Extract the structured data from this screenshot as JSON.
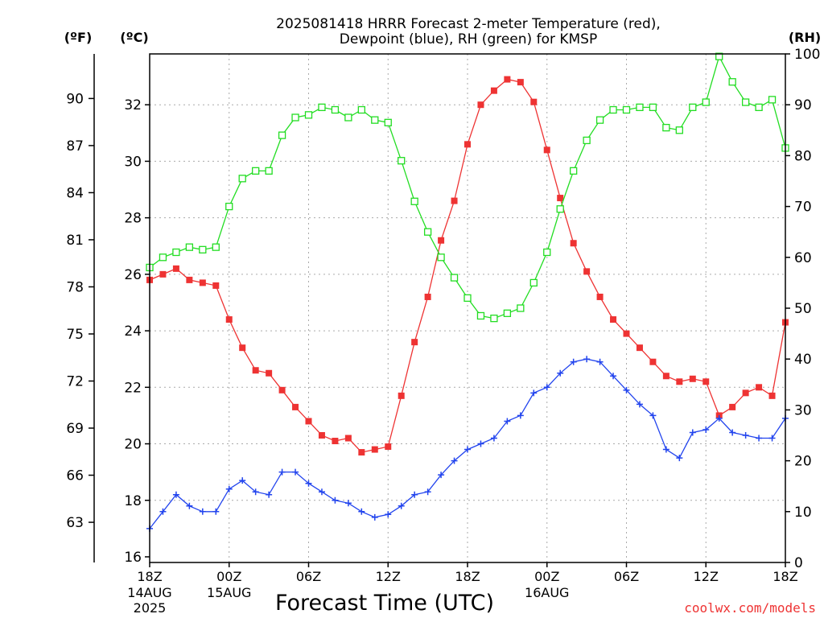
{
  "chart_data": {
    "type": "line",
    "title": "2025081418 HRRR Forecast 2-meter Temperature (red),",
    "subtitle": "Dewpoint (blue), RH (green) for KMSP",
    "xlabel": "Forecast Time (UTC)",
    "units": {
      "fahrenheit": "(ºF)",
      "celsius": "(ºC)",
      "rh": "(RH)"
    },
    "credit": "coolwx.com/models",
    "x_ticks": [
      {
        "hour": 0,
        "label": "18Z",
        "sub": [
          "14AUG",
          "2025"
        ]
      },
      {
        "hour": 6,
        "label": "00Z",
        "sub": [
          "15AUG"
        ]
      },
      {
        "hour": 12,
        "label": "06Z",
        "sub": []
      },
      {
        "hour": 18,
        "label": "12Z",
        "sub": []
      },
      {
        "hour": 24,
        "label": "18Z",
        "sub": []
      },
      {
        "hour": 30,
        "label": "00Z",
        "sub": [
          "16AUG"
        ]
      },
      {
        "hour": 36,
        "label": "06Z",
        "sub": []
      },
      {
        "hour": 42,
        "label": "12Z",
        "sub": []
      },
      {
        "hour": 48,
        "label": "18Z",
        "sub": []
      }
    ],
    "xlim": [
      0,
      48
    ],
    "ylim_celsius": [
      15.8,
      33.8
    ],
    "ylim_rh": [
      0,
      100
    ],
    "celsius_ticks": [
      16,
      18,
      20,
      22,
      24,
      26,
      28,
      30,
      32
    ],
    "fahrenheit_ticks": [
      63,
      66,
      69,
      72,
      75,
      78,
      81,
      84,
      87,
      90
    ],
    "rh_ticks": [
      0,
      10,
      20,
      30,
      40,
      50,
      60,
      70,
      80,
      90,
      100
    ],
    "grid": true,
    "colors": {
      "temperature": "#ee3333",
      "dewpoint": "#2244ee",
      "rh": "#22dd22"
    },
    "series": [
      {
        "key": "temperature",
        "unit": "celsius",
        "marker": "filled-square",
        "values": [
          25.8,
          26.0,
          26.2,
          25.8,
          25.7,
          25.6,
          24.4,
          23.4,
          22.6,
          22.5,
          21.9,
          21.3,
          20.8,
          20.3,
          20.1,
          20.2,
          19.7,
          19.8,
          19.9,
          21.7,
          23.6,
          25.2,
          27.2,
          28.6,
          30.6,
          32.0,
          32.5,
          32.9,
          32.8,
          32.1,
          30.4,
          28.7,
          27.1,
          26.1,
          25.2,
          24.4,
          23.9,
          23.4,
          22.9,
          22.4,
          22.2,
          22.3,
          22.2,
          21.0,
          21.3,
          21.8,
          22.0,
          21.7,
          24.3
        ]
      },
      {
        "key": "dewpoint",
        "unit": "celsius",
        "marker": "plus",
        "values": [
          17.0,
          17.6,
          18.2,
          17.8,
          17.6,
          17.6,
          18.4,
          18.7,
          18.3,
          18.2,
          19.0,
          19.0,
          18.6,
          18.3,
          18.0,
          17.9,
          17.6,
          17.4,
          17.5,
          17.8,
          18.2,
          18.3,
          18.9,
          19.4,
          19.8,
          20.0,
          20.2,
          20.8,
          21.0,
          21.8,
          22.0,
          22.5,
          22.9,
          23.0,
          22.9,
          22.4,
          21.9,
          21.4,
          21.0,
          19.8,
          19.5,
          20.4,
          20.5,
          20.9,
          20.4,
          20.3,
          20.2,
          20.2,
          20.9
        ]
      },
      {
        "key": "rh",
        "unit": "percent",
        "marker": "open-square",
        "values": [
          58,
          60,
          61,
          62,
          61.5,
          62,
          70,
          75.5,
          77,
          77,
          84,
          87.5,
          88,
          89.5,
          89,
          87.5,
          89,
          87,
          86.5,
          79,
          71,
          65,
          60,
          56,
          52,
          48.5,
          48,
          49,
          50,
          55,
          61,
          69.5,
          77,
          83,
          87,
          89,
          89,
          89.5,
          89.5,
          85.5,
          85,
          89.5,
          90.5,
          99.5,
          94.5,
          90.5,
          89.5,
          91,
          81.5
        ]
      }
    ]
  }
}
